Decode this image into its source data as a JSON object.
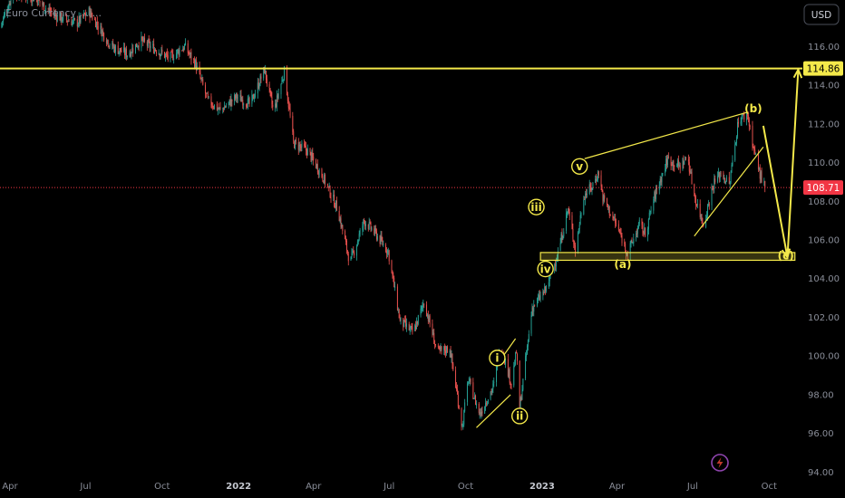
{
  "header": {
    "symbol_title": "Euro Currency ... ...",
    "currency_button": "USD"
  },
  "colors": {
    "background": "#000000",
    "up_candle": "#26a69a",
    "down_candle": "#ef5350",
    "annotation": "#f4e94a",
    "last_price": "#f23645",
    "axis_text": "#8a8e99"
  },
  "chart_data": {
    "type": "candlestick",
    "title": "",
    "ylim": [
      93.6,
      118.4
    ],
    "y_ticks": [
      94,
      96,
      98,
      100,
      102,
      104,
      106,
      108,
      110,
      112,
      114,
      116
    ],
    "y_tick_labels": [
      "94.00",
      "96.00",
      "98.00",
      "100.00",
      "102.00",
      "104.00",
      "106.00",
      "108.00",
      "110.00",
      "112.00",
      "114.00",
      "116.00"
    ],
    "x_range": [
      "2021-03-20",
      "2023-11-10"
    ],
    "x_ticks": [
      {
        "date": "2021-04-01",
        "label": "Apr"
      },
      {
        "date": "2021-07-01",
        "label": "Jul"
      },
      {
        "date": "2021-10-01",
        "label": "Oct"
      },
      {
        "date": "2022-01-01",
        "label": "2022"
      },
      {
        "date": "2022-04-01",
        "label": "Apr"
      },
      {
        "date": "2022-07-01",
        "label": "Jul"
      },
      {
        "date": "2022-10-01",
        "label": "Oct"
      },
      {
        "date": "2023-01-01",
        "label": "2023"
      },
      {
        "date": "2023-04-01",
        "label": "Apr"
      },
      {
        "date": "2023-07-01",
        "label": "Jul"
      },
      {
        "date": "2023-10-01",
        "label": "Oct"
      }
    ],
    "price_path": [
      [
        "2021-03-20",
        117.0
      ],
      [
        "2021-04-05",
        118.8
      ],
      [
        "2021-05-01",
        118.5
      ],
      [
        "2021-05-25",
        117.6
      ],
      [
        "2021-06-20",
        117.2
      ],
      [
        "2021-07-05",
        117.8
      ],
      [
        "2021-08-01",
        116.0
      ],
      [
        "2021-08-20",
        115.6
      ],
      [
        "2021-09-05",
        116.3
      ],
      [
        "2021-09-25",
        115.8
      ],
      [
        "2021-10-10",
        115.4
      ],
      [
        "2021-10-28",
        116.0
      ],
      [
        "2021-11-10",
        115.1
      ],
      [
        "2021-11-25",
        113.2
      ],
      [
        "2021-12-10",
        112.7
      ],
      [
        "2021-12-30",
        113.4
      ],
      [
        "2022-01-15",
        113.0
      ],
      [
        "2022-02-01",
        114.8
      ],
      [
        "2022-02-12",
        112.6
      ],
      [
        "2022-02-25",
        114.7
      ],
      [
        "2022-03-08",
        111.0
      ],
      [
        "2022-03-25",
        110.6
      ],
      [
        "2022-04-12",
        109.3
      ],
      [
        "2022-04-30",
        107.6
      ],
      [
        "2022-05-15",
        104.8
      ],
      [
        "2022-06-01",
        107.0
      ],
      [
        "2022-06-15",
        106.3
      ],
      [
        "2022-06-30",
        105.4
      ],
      [
        "2022-07-14",
        101.8
      ],
      [
        "2022-07-30",
        101.2
      ],
      [
        "2022-08-12",
        102.8
      ],
      [
        "2022-08-28",
        100.2
      ],
      [
        "2022-09-12",
        100.4
      ],
      [
        "2022-09-27",
        96.3
      ],
      [
        "2022-10-04",
        98.8
      ],
      [
        "2022-10-18",
        97.0
      ],
      [
        "2022-11-04",
        98.5
      ],
      [
        "2022-11-12",
        100.6
      ],
      [
        "2022-11-25",
        98.6
      ],
      [
        "2022-12-01",
        100.2
      ],
      [
        "2022-12-05",
        97.3
      ],
      [
        "2022-12-20",
        102.5
      ],
      [
        "2023-01-05",
        103.4
      ],
      [
        "2023-01-20",
        105.3
      ],
      [
        "2023-02-01",
        107.6
      ],
      [
        "2023-02-10",
        105.5
      ],
      [
        "2023-02-20",
        108.3
      ],
      [
        "2023-03-01",
        108.7
      ],
      [
        "2023-03-10",
        109.5
      ],
      [
        "2023-03-15",
        108.2
      ],
      [
        "2023-04-01",
        106.7
      ],
      [
        "2023-04-14",
        105.3
      ],
      [
        "2023-04-28",
        106.8
      ],
      [
        "2023-05-05",
        106.3
      ],
      [
        "2023-05-15",
        108.1
      ],
      [
        "2023-06-01",
        110.2
      ],
      [
        "2023-06-15",
        109.8
      ],
      [
        "2023-06-25",
        110.3
      ],
      [
        "2023-07-03",
        108.3
      ],
      [
        "2023-07-14",
        106.8
      ],
      [
        "2023-07-26",
        108.9
      ],
      [
        "2023-08-04",
        109.5
      ],
      [
        "2023-08-14",
        108.8
      ],
      [
        "2023-08-25",
        112.2
      ],
      [
        "2023-09-05",
        112.5
      ],
      [
        "2023-09-12",
        110.8
      ],
      [
        "2023-09-20",
        109.4
      ],
      [
        "2023-09-26",
        108.71
      ]
    ],
    "resistance_level": {
      "value": 114.86,
      "label": "114.86"
    },
    "last_price": {
      "value": 108.71,
      "label": "108.71"
    },
    "support_zone": {
      "x_range": [
        "2022-12-30",
        "2023-11-01"
      ],
      "y_range": [
        104.95,
        105.35
      ]
    },
    "wave_labels": [
      {
        "text": "i",
        "date": "2022-11-08",
        "price": 99.9,
        "circled": true
      },
      {
        "text": "ii",
        "date": "2022-12-05",
        "price": 96.9,
        "circled": true
      },
      {
        "text": "iii",
        "date": "2022-12-25",
        "price": 107.7,
        "circled": true
      },
      {
        "text": "iv",
        "date": "2023-01-05",
        "price": 104.5,
        "circled": true
      },
      {
        "text": "v",
        "date": "2023-02-15",
        "price": 109.8,
        "circled": true
      },
      {
        "text": "(a)",
        "date": "2023-04-08",
        "price": 104.75,
        "circled": false
      },
      {
        "text": "(b)",
        "date": "2023-09-12",
        "price": 112.8,
        "circled": false
      },
      {
        "text": "(c)",
        "date": "2023-10-21",
        "price": 105.2,
        "circled": false
      }
    ],
    "trend_lines": [
      {
        "from": [
          "2022-10-14",
          96.3
        ],
        "to": [
          "2022-11-24",
          98.0
        ]
      },
      {
        "from": [
          "2022-11-07",
          99.5
        ],
        "to": [
          "2022-11-30",
          100.9
        ]
      },
      {
        "from": [
          "2023-02-21",
          110.2
        ],
        "to": [
          "2023-09-05",
          112.6
        ]
      },
      {
        "from": [
          "2023-07-03",
          106.2
        ],
        "to": [
          "2023-09-24",
          110.8
        ]
      }
    ],
    "projection_paths": [
      {
        "points": [
          [
            "2023-09-24",
            111.9
          ],
          [
            "2023-10-23",
            105.1
          ],
          [
            "2023-11-05",
            114.8
          ]
        ],
        "arrow_at_end": true
      }
    ]
  }
}
